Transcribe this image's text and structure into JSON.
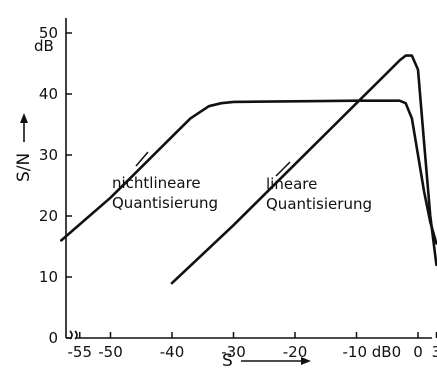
{
  "chart_data": {
    "type": "line",
    "xlabel": "S",
    "ylabel": "S/N",
    "y_unit": "dB",
    "x_unit": "dB0",
    "ylim": [
      0,
      50
    ],
    "yticks": [
      0,
      10,
      20,
      30,
      40,
      50
    ],
    "x_tick_labels": [
      "-55",
      "-50",
      "-40",
      "-30",
      "-20",
      "-10 dB0",
      "0",
      "3"
    ],
    "x_tick_values": [
      -55,
      -50,
      -40,
      -30,
      -20,
      -10,
      0,
      3
    ],
    "axis_break": true,
    "grid": false,
    "series": [
      {
        "name": "nichtlineare Quantisierung",
        "x": [
          -58,
          -50,
          -45,
          -40,
          -37,
          -34,
          -32,
          -30,
          -20,
          -10,
          -3,
          -2,
          -1,
          0,
          1,
          2,
          3
        ],
        "y": [
          16,
          23,
          28,
          33,
          36,
          38,
          38.5,
          38.7,
          38.8,
          38.9,
          38.9,
          38.5,
          36,
          30,
          24,
          19,
          15.5
        ]
      },
      {
        "name": "lineare Quantisierung",
        "x": [
          -40,
          -30,
          -20,
          -10,
          -5,
          -3,
          -2,
          -1,
          0,
          1,
          2,
          3
        ],
        "y": [
          9,
          18.5,
          28.5,
          38.5,
          43.5,
          45.5,
          46.3,
          46.3,
          44,
          32,
          20,
          12
        ]
      }
    ],
    "annotations": {
      "nonlinear": [
        "nichtlineare",
        "Quantisierung"
      ],
      "linear": [
        "lineare",
        "Quantisierung"
      ]
    }
  }
}
